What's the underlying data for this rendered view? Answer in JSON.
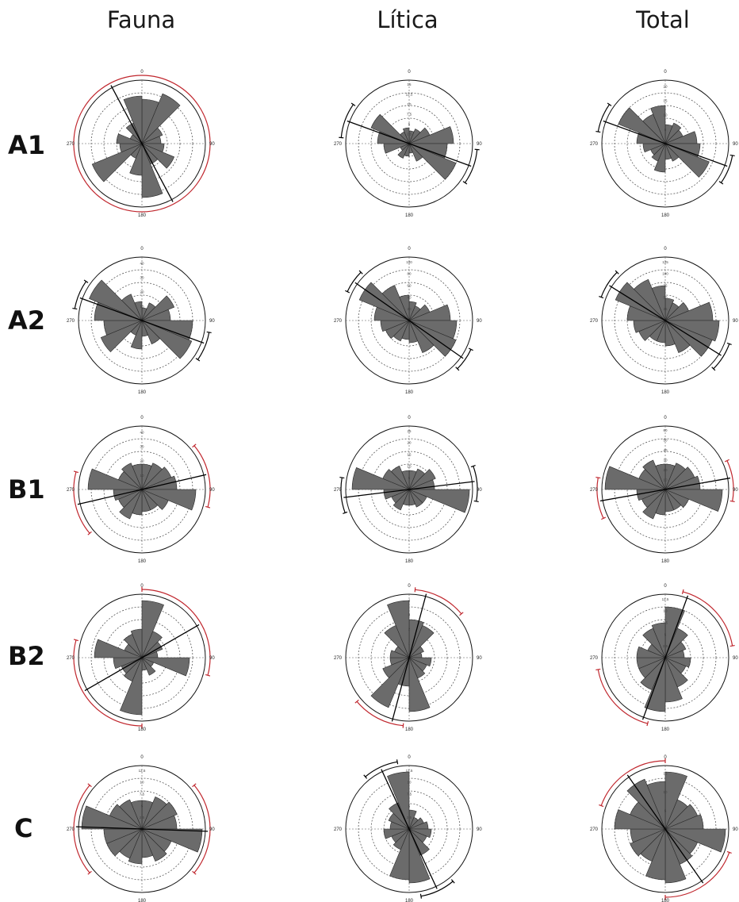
{
  "columns": [
    "Fauna",
    "Lítica",
    "Total"
  ],
  "rows": [
    "A1",
    "A2",
    "B1",
    "B2",
    "C"
  ],
  "colors": {
    "petal": "#6b6b6b",
    "ring": "#000000",
    "mean_ci_red": "#c0262d",
    "mean_ci_black": "#000000"
  },
  "chart_data": [
    {
      "type": "rose",
      "row": "A1",
      "column": "Fauna",
      "direction_labels": [
        "0",
        "90",
        "180",
        "270"
      ],
      "ring_labels": [],
      "sector_width_deg": 22.5,
      "values": [
        0.7,
        0.85,
        0.35,
        0.3,
        0.35,
        0.55,
        0.35,
        0.85,
        0.5,
        0.25,
        0.85,
        0.35,
        0.4,
        0.2,
        0.35,
        0.75
      ],
      "mean_direction_deg": 152,
      "ci_color": "red",
      "ci_arcs": [
        [
          0,
          360
        ]
      ]
    },
    {
      "type": "rose",
      "row": "A1",
      "column": "Lítica",
      "direction_labels": [
        "0",
        "90",
        "180",
        "270"
      ],
      "ring_labels": [
        "15",
        "12.5",
        "10",
        "7.5",
        "5",
        "2.5"
      ],
      "sector_width_deg": 22.5,
      "values": [
        0.2,
        0.25,
        0.35,
        0.7,
        0.6,
        0.8,
        0.3,
        0.15,
        0.2,
        0.25,
        0.15,
        0.4,
        0.5,
        0.65,
        0.2,
        0.25
      ],
      "mean_direction_deg": 110,
      "ci_color": "black",
      "ci_arcs": [
        [
          95,
          125
        ],
        [
          275,
          305
        ]
      ]
    },
    {
      "type": "rose",
      "row": "A1",
      "column": "Total",
      "direction_labels": [
        "0",
        "90",
        "180",
        "270"
      ],
      "ring_labels": [
        "20",
        "15",
        "10",
        "5"
      ],
      "sector_width_deg": 22.5,
      "values": [
        0.3,
        0.35,
        0.3,
        0.5,
        0.55,
        0.75,
        0.3,
        0.25,
        0.45,
        0.3,
        0.25,
        0.35,
        0.45,
        0.8,
        0.5,
        0.6
      ],
      "mean_direction_deg": 110,
      "ci_color": "black",
      "ci_arcs": [
        [
          100,
          125
        ],
        [
          280,
          305
        ]
      ]
    },
    {
      "type": "rose",
      "row": "A2",
      "column": "Fauna",
      "direction_labels": [
        "0",
        "90",
        "180",
        "270"
      ],
      "ring_labels": [
        "40",
        "30",
        "20",
        "10"
      ],
      "sector_width_deg": 22.5,
      "values": [
        0.2,
        0.3,
        0.55,
        0.45,
        0.8,
        0.85,
        0.4,
        0.25,
        0.45,
        0.25,
        0.7,
        0.6,
        0.75,
        0.9,
        0.45,
        0.3
      ],
      "mean_direction_deg": 110,
      "ci_color": "black",
      "ci_arcs": [
        [
          100,
          125
        ],
        [
          280,
          305
        ]
      ]
    },
    {
      "type": "rose",
      "row": "A2",
      "column": "Lítica",
      "direction_labels": [
        "0",
        "90",
        "180",
        "270"
      ],
      "ring_labels": [
        "100",
        "80",
        "60",
        "40",
        "20"
      ],
      "sector_width_deg": 22.5,
      "values": [
        0.3,
        0.25,
        0.35,
        0.65,
        0.75,
        0.8,
        0.55,
        0.35,
        0.3,
        0.35,
        0.4,
        0.45,
        0.55,
        0.85,
        0.6,
        0.4
      ],
      "mean_direction_deg": 125,
      "ci_color": "black",
      "ci_arcs": [
        [
          115,
          135
        ],
        [
          295,
          315
        ]
      ]
    },
    {
      "type": "rose",
      "row": "A2",
      "column": "Total",
      "direction_labels": [
        "0",
        "90",
        "180",
        "270"
      ],
      "ring_labels": [
        "125",
        "100",
        "75",
        "50",
        "25"
      ],
      "sector_width_deg": 22.5,
      "values": [
        0.35,
        0.3,
        0.4,
        0.75,
        0.85,
        0.8,
        0.55,
        0.4,
        0.35,
        0.35,
        0.45,
        0.5,
        0.6,
        0.85,
        0.7,
        0.55
      ],
      "mean_direction_deg": 122,
      "ci_color": "black",
      "ci_arcs": [
        [
          110,
          135
        ],
        [
          290,
          315
        ]
      ]
    },
    {
      "type": "rose",
      "row": "B1",
      "column": "Fauna",
      "direction_labels": [
        "0",
        "90",
        "180",
        "270"
      ],
      "ring_labels": [
        "40",
        "30",
        "20",
        "10"
      ],
      "sector_width_deg": 22.5,
      "values": [
        0.4,
        0.45,
        0.5,
        0.55,
        0.85,
        0.45,
        0.35,
        0.35,
        0.4,
        0.5,
        0.4,
        0.45,
        0.85,
        0.4,
        0.45,
        0.4
      ],
      "mean_direction_deg": 77,
      "ci_color": "red",
      "ci_arcs": [
        [
          50,
          105
        ],
        [
          230,
          285
        ]
      ]
    },
    {
      "type": "rose",
      "row": "B1",
      "column": "Lítica",
      "direction_labels": [
        "0",
        "90",
        "180",
        "270"
      ],
      "ring_labels": [
        "25",
        "20",
        "15",
        "10",
        "5"
      ],
      "sector_width_deg": 22.5,
      "values": [
        0.3,
        0.35,
        0.45,
        0.4,
        0.95,
        0.3,
        0.3,
        0.25,
        0.25,
        0.35,
        0.3,
        0.4,
        0.9,
        0.45,
        0.4,
        0.3
      ],
      "mean_direction_deg": 83,
      "ci_color": "black",
      "ci_arcs": [
        [
          70,
          100
        ],
        [
          250,
          280
        ]
      ]
    },
    {
      "type": "rose",
      "row": "B1",
      "column": "Total",
      "direction_labels": [
        "0",
        "90",
        "180",
        "270"
      ],
      "ring_labels": [
        "60",
        "50",
        "40",
        "30",
        "20",
        "10"
      ],
      "sector_width_deg": 22.5,
      "values": [
        0.4,
        0.45,
        0.5,
        0.55,
        0.9,
        0.4,
        0.35,
        0.35,
        0.4,
        0.5,
        0.4,
        0.45,
        0.95,
        0.45,
        0.5,
        0.4
      ],
      "mean_direction_deg": 80,
      "ci_color": "red",
      "ci_arcs": [
        [
          65,
          100
        ],
        [
          245,
          280
        ]
      ]
    },
    {
      "type": "rose",
      "row": "B2",
      "column": "Fauna",
      "direction_labels": [
        "0",
        "90",
        "180",
        "270"
      ],
      "ring_labels": [],
      "sector_width_deg": 22.5,
      "values": [
        0.9,
        0.45,
        0.35,
        0.25,
        0.75,
        0.2,
        0.3,
        0.2,
        0.9,
        0.4,
        0.35,
        0.45,
        0.75,
        0.3,
        0.4,
        0.45
      ],
      "mean_direction_deg": 60,
      "ci_color": "red",
      "ci_arcs": [
        [
          0,
          105
        ],
        [
          180,
          285
        ]
      ]
    },
    {
      "type": "rose",
      "row": "B2",
      "column": "Lítica",
      "direction_labels": [
        "0",
        "90",
        "180",
        "270"
      ],
      "ring_labels": [
        "4",
        "3",
        "2",
        "1"
      ],
      "sector_width_deg": 22.5,
      "values": [
        0.6,
        0.55,
        0.25,
        0.2,
        0.35,
        0.3,
        0.35,
        0.85,
        0.45,
        0.85,
        0.45,
        0.3,
        0.3,
        0.25,
        0.55,
        0.9
      ],
      "mean_direction_deg": 15,
      "ci_color": "red",
      "ci_arcs": [
        [
          5,
          50
        ],
        [
          185,
          230
        ]
      ]
    },
    {
      "type": "rose",
      "row": "B2",
      "column": "Total",
      "direction_labels": [
        "0",
        "90",
        "180",
        "270"
      ],
      "ring_labels": [
        "12.5",
        "10",
        "7.5",
        "5",
        "2.5"
      ],
      "sector_width_deg": 22.5,
      "values": [
        0.8,
        0.5,
        0.35,
        0.3,
        0.4,
        0.35,
        0.5,
        0.7,
        0.85,
        0.55,
        0.45,
        0.45,
        0.45,
        0.3,
        0.5,
        0.55
      ],
      "mean_direction_deg": 20,
      "ci_color": "red",
      "ci_arcs": [
        [
          15,
          80
        ],
        [
          195,
          260
        ]
      ]
    },
    {
      "type": "rose",
      "row": "C",
      "column": "Fauna",
      "direction_labels": [
        "0",
        "90",
        "180",
        "270"
      ],
      "ring_labels": [
        "12.5",
        "10",
        "7.5",
        "5",
        "2.5"
      ],
      "sector_width_deg": 22.5,
      "values": [
        0.45,
        0.55,
        0.6,
        0.55,
        0.95,
        0.5,
        0.55,
        0.45,
        0.55,
        0.5,
        0.6,
        0.6,
        0.95,
        0.55,
        0.5,
        0.45
      ],
      "mean_direction_deg": 92,
      "ci_color": "red",
      "ci_arcs": [
        [
          50,
          130
        ],
        [
          230,
          310
        ]
      ]
    },
    {
      "type": "rose",
      "row": "C",
      "column": "Lítica",
      "direction_labels": [
        "0",
        "90",
        "180",
        "270"
      ],
      "ring_labels": [
        "12.5",
        "10",
        "7.5",
        "5",
        "2.5"
      ],
      "sector_width_deg": 22.5,
      "values": [
        0.3,
        0.2,
        0.25,
        0.3,
        0.35,
        0.3,
        0.45,
        0.85,
        0.8,
        0.35,
        0.3,
        0.4,
        0.3,
        0.35,
        0.45,
        0.9
      ],
      "mean_direction_deg": 155,
      "ci_color": "black",
      "ci_arcs": [
        [
          140,
          170
        ],
        [
          320,
          350
        ]
      ]
    },
    {
      "type": "rose",
      "row": "C",
      "column": "Total",
      "direction_labels": [
        "0",
        "90",
        "180",
        "270"
      ],
      "ring_labels": [
        "15",
        "10",
        "5"
      ],
      "sector_width_deg": 22.5,
      "values": [
        0.9,
        0.5,
        0.55,
        0.6,
        0.95,
        0.55,
        0.6,
        0.85,
        0.8,
        0.55,
        0.6,
        0.55,
        0.8,
        0.6,
        0.85,
        0.75
      ],
      "mean_direction_deg": 145,
      "ci_color": "red",
      "ci_arcs": [
        [
          110,
          180
        ],
        [
          290,
          360
        ]
      ]
    }
  ]
}
